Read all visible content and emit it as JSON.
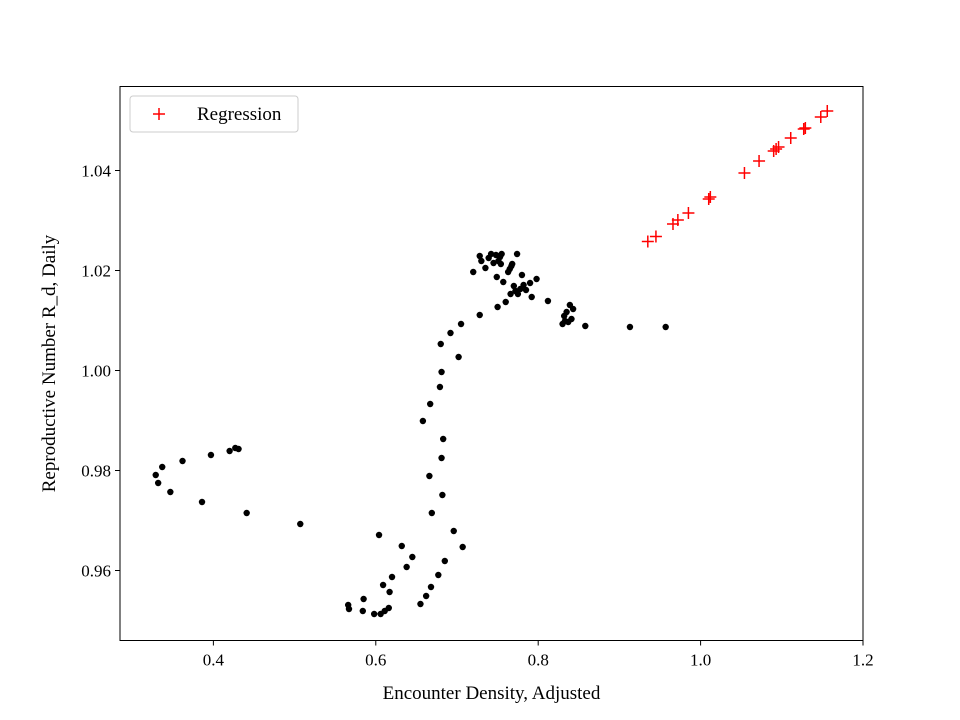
{
  "chart_data": {
    "type": "scatter",
    "xlabel": "Encounter Density, Adjusted",
    "ylabel": "Reproductive Number R_d, Daily",
    "xlim": [
      0.285,
      1.2
    ],
    "ylim": [
      0.946,
      1.0568
    ],
    "x_ticks": [
      {
        "value": 0.4,
        "label": "0.4"
      },
      {
        "value": 0.6,
        "label": "0.6"
      },
      {
        "value": 0.8,
        "label": "0.8"
      },
      {
        "value": 1.0,
        "label": "1.0"
      },
      {
        "value": 1.2,
        "label": "1.2"
      }
    ],
    "y_ticks": [
      {
        "value": 0.96,
        "label": "0.96"
      },
      {
        "value": 0.98,
        "label": "0.98"
      },
      {
        "value": 1.0,
        "label": "1.00"
      },
      {
        "value": 1.02,
        "label": "1.02"
      },
      {
        "value": 1.04,
        "label": "1.04"
      }
    ],
    "grid": false,
    "legend": {
      "position": "upper-left",
      "entries": [
        "Regression"
      ]
    },
    "series": [
      {
        "marker": "circle",
        "color": "#000000",
        "points": [
          [
            0.329,
            0.9791
          ],
          [
            0.332,
            0.9775
          ],
          [
            0.337,
            0.9807
          ],
          [
            0.347,
            0.9757
          ],
          [
            0.362,
            0.9819
          ],
          [
            0.386,
            0.9737
          ],
          [
            0.397,
            0.9831
          ],
          [
            0.42,
            0.9839
          ],
          [
            0.427,
            0.9845
          ],
          [
            0.431,
            0.9843
          ],
          [
            0.441,
            0.9715
          ],
          [
            0.507,
            0.9693
          ],
          [
            0.566,
            0.9531
          ],
          [
            0.567,
            0.9523
          ],
          [
            0.584,
            0.9519
          ],
          [
            0.585,
            0.9543
          ],
          [
            0.598,
            0.9513
          ],
          [
            0.604,
            0.9671
          ],
          [
            0.606,
            0.9513
          ],
          [
            0.609,
            0.9571
          ],
          [
            0.611,
            0.9519
          ],
          [
            0.616,
            0.9525
          ],
          [
            0.617,
            0.9557
          ],
          [
            0.62,
            0.9587
          ],
          [
            0.632,
            0.9649
          ],
          [
            0.638,
            0.9607
          ],
          [
            0.645,
            0.9627
          ],
          [
            0.655,
            0.9533
          ],
          [
            0.658,
            0.9899
          ],
          [
            0.662,
            0.9549
          ],
          [
            0.666,
            0.9789
          ],
          [
            0.667,
            0.9933
          ],
          [
            0.668,
            0.9567
          ],
          [
            0.669,
            0.9715
          ],
          [
            0.677,
            0.9591
          ],
          [
            0.679,
            0.9967
          ],
          [
            0.68,
            1.0053
          ],
          [
            0.681,
            0.9997
          ],
          [
            0.681,
            0.9825
          ],
          [
            0.682,
            0.9751
          ],
          [
            0.683,
            0.9863
          ],
          [
            0.685,
            0.9619
          ],
          [
            0.692,
            1.0075
          ],
          [
            0.696,
            0.9679
          ],
          [
            0.702,
            1.0027
          ],
          [
            0.705,
            1.0093
          ],
          [
            0.707,
            0.9647
          ],
          [
            0.72,
            1.0197
          ],
          [
            0.728,
            1.0111
          ],
          [
            0.728,
            1.0229
          ],
          [
            0.73,
            1.0219
          ],
          [
            0.735,
            1.0205
          ],
          [
            0.739,
            1.0225
          ],
          [
            0.742,
            1.0233
          ],
          [
            0.745,
            1.0215
          ],
          [
            0.748,
            1.0231
          ],
          [
            0.749,
            1.0187
          ],
          [
            0.75,
            1.0127
          ],
          [
            0.751,
            1.0219
          ],
          [
            0.753,
            1.0227
          ],
          [
            0.754,
            1.0213
          ],
          [
            0.755,
            1.0233
          ],
          [
            0.757,
            1.0177
          ],
          [
            0.76,
            1.0137
          ],
          [
            0.763,
            1.0197
          ],
          [
            0.765,
            1.0203
          ],
          [
            0.766,
            1.0153
          ],
          [
            0.767,
            1.0209
          ],
          [
            0.768,
            1.0213
          ],
          [
            0.77,
            1.0169
          ],
          [
            0.772,
            1.0159
          ],
          [
            0.774,
            1.0233
          ],
          [
            0.775,
            1.0153
          ],
          [
            0.778,
            1.0163
          ],
          [
            0.78,
            1.0191
          ],
          [
            0.782,
            1.0171
          ],
          [
            0.785,
            1.0161
          ],
          [
            0.79,
            1.0175
          ],
          [
            0.792,
            1.0147
          ],
          [
            0.798,
            1.0183
          ],
          [
            0.812,
            1.0139
          ],
          [
            0.83,
            1.0093
          ],
          [
            0.832,
            1.0109
          ],
          [
            0.833,
            1.0099
          ],
          [
            0.835,
            1.0117
          ],
          [
            0.837,
            1.0097
          ],
          [
            0.839,
            1.0131
          ],
          [
            0.841,
            1.0103
          ],
          [
            0.843,
            1.0123
          ],
          [
            0.858,
            1.0089
          ],
          [
            0.913,
            1.0087
          ],
          [
            0.957,
            1.0087
          ]
        ]
      },
      {
        "name": "Regression",
        "marker": "plus",
        "color": "#ff0000",
        "points": [
          [
            0.935,
            1.0258
          ],
          [
            0.945,
            1.0268
          ],
          [
            0.966,
            1.0293
          ],
          [
            0.972,
            1.0301
          ],
          [
            0.985,
            1.0315
          ],
          [
            1.01,
            1.0343
          ],
          [
            1.012,
            1.0347
          ],
          [
            1.054,
            1.0395
          ],
          [
            1.072,
            1.0419
          ],
          [
            1.09,
            1.0439
          ],
          [
            1.093,
            1.0443
          ],
          [
            1.096,
            1.0447
          ],
          [
            1.111,
            1.0465
          ],
          [
            1.127,
            1.0483
          ],
          [
            1.129,
            1.0485
          ],
          [
            1.148,
            1.0507
          ],
          [
            1.156,
            1.0519
          ]
        ]
      }
    ]
  }
}
